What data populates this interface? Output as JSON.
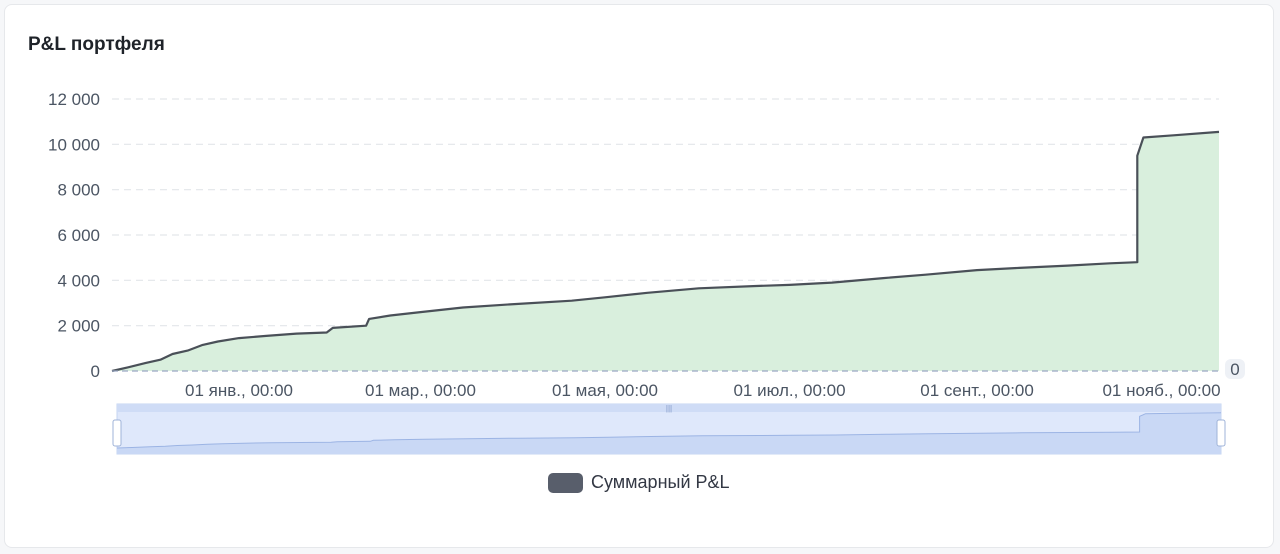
{
  "title": "P&L портфеля",
  "legend": {
    "label": "Суммарный P&L"
  },
  "colors": {
    "line": "#4a5058",
    "area": "#d9efdd",
    "grid": "#e3e6ea",
    "zoom_fill": "#dfe8fb",
    "zoom_stroke": "#c5d4f2"
  },
  "chart_data": {
    "type": "area",
    "title": "P&L портфеля",
    "xlabel": "",
    "ylabel": "",
    "ylim": [
      0,
      12000
    ],
    "y_ticks": [
      "12 000",
      "10 000",
      "8 000",
      "6 000",
      "4 000",
      "2 000",
      "0"
    ],
    "x_ticks": [
      "01 янв., 00:00",
      "01 мар., 00:00",
      "01 мая, 00:00",
      "01 июл., 00:00",
      "01 сент., 00:00",
      "01 нояб., 00:00"
    ],
    "x_range_label": "0",
    "grid": true,
    "legend_position": "bottom",
    "series": [
      {
        "name": "Суммарный P&L",
        "points": [
          [
            "2023-11-20",
            0
          ],
          [
            "2023-11-25",
            150
          ],
          [
            "2023-12-01",
            350
          ],
          [
            "2023-12-06",
            500
          ],
          [
            "2023-12-10",
            750
          ],
          [
            "2023-12-15",
            900
          ],
          [
            "2023-12-20",
            1150
          ],
          [
            "2023-12-25",
            1300
          ],
          [
            "2024-01-01",
            1450
          ],
          [
            "2024-01-10",
            1550
          ],
          [
            "2024-01-20",
            1650
          ],
          [
            "2024-01-30",
            1700
          ],
          [
            "2024-02-01",
            1900
          ],
          [
            "2024-02-12",
            2000
          ],
          [
            "2024-02-13",
            2300
          ],
          [
            "2024-02-20",
            2450
          ],
          [
            "2024-03-01",
            2600
          ],
          [
            "2024-03-15",
            2800
          ],
          [
            "2024-04-01",
            2950
          ],
          [
            "2024-04-20",
            3100
          ],
          [
            "2024-05-01",
            3250
          ],
          [
            "2024-05-15",
            3450
          ],
          [
            "2024-06-01",
            3650
          ],
          [
            "2024-06-20",
            3750
          ],
          [
            "2024-07-01",
            3800
          ],
          [
            "2024-07-15",
            3900
          ],
          [
            "2024-08-01",
            4100
          ],
          [
            "2024-08-15",
            4250
          ],
          [
            "2024-09-01",
            4450
          ],
          [
            "2024-09-15",
            4550
          ],
          [
            "2024-10-01",
            4650
          ],
          [
            "2024-10-15",
            4750
          ],
          [
            "2024-10-24",
            4800
          ],
          [
            "2024-10-24",
            9500
          ],
          [
            "2024-10-26",
            10300
          ],
          [
            "2024-11-05",
            10400
          ],
          [
            "2024-11-20",
            10550
          ]
        ]
      }
    ]
  }
}
